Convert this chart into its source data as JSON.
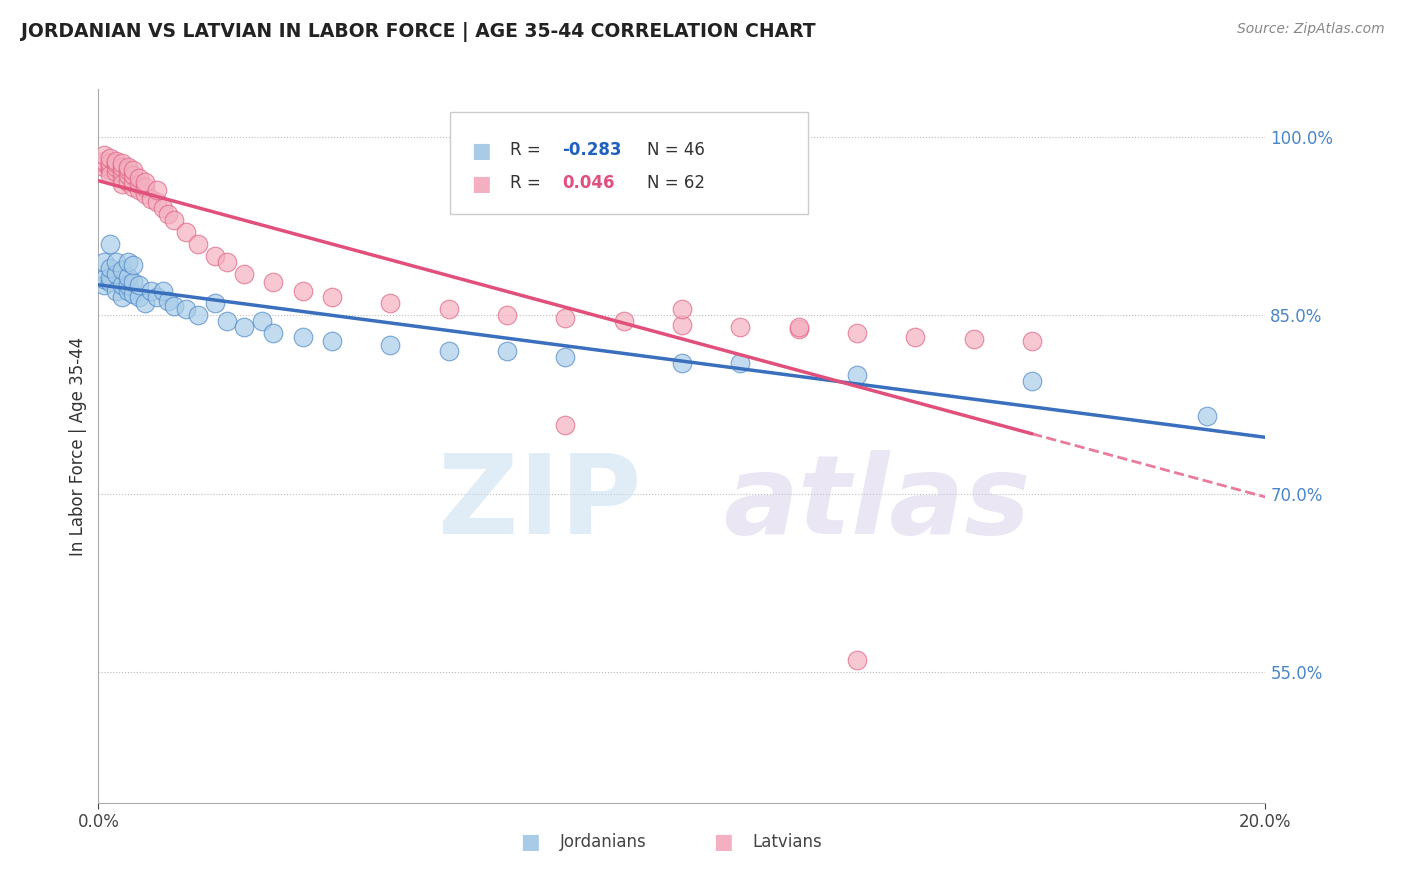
{
  "title": "JORDANIAN VS LATVIAN IN LABOR FORCE | AGE 35-44 CORRELATION CHART",
  "source": "Source: ZipAtlas.com",
  "ylabel": "In Labor Force | Age 35-44",
  "xlim": [
    0.0,
    0.2
  ],
  "ylim": [
    0.44,
    1.04
  ],
  "yticks": [
    0.55,
    0.7,
    0.85,
    1.0
  ],
  "ytick_labels": [
    "55.0%",
    "70.0%",
    "85.0%",
    "100.0%"
  ],
  "R_jordanian": -0.283,
  "N_jordanian": 46,
  "R_latvian": 0.046,
  "N_latvian": 62,
  "blue_fill": "#a8cce8",
  "blue_edge": "#4a86c8",
  "pink_fill": "#f4b0c0",
  "pink_edge": "#e06080",
  "blue_line": "#3a6fbe",
  "pink_line": "#e0507a",
  "jordanian_x": [
    0.001,
    0.001,
    0.001,
    0.002,
    0.002,
    0.002,
    0.002,
    0.003,
    0.003,
    0.003,
    0.004,
    0.004,
    0.004,
    0.005,
    0.005,
    0.005,
    0.005,
    0.006,
    0.006,
    0.006,
    0.007,
    0.007,
    0.008,
    0.009,
    0.01,
    0.011,
    0.012,
    0.013,
    0.015,
    0.017,
    0.02,
    0.022,
    0.025,
    0.028,
    0.03,
    0.035,
    0.04,
    0.05,
    0.06,
    0.07,
    0.08,
    0.1,
    0.11,
    0.13,
    0.16,
    0.19
  ],
  "jordanian_y": [
    0.875,
    0.88,
    0.895,
    0.878,
    0.882,
    0.89,
    0.91,
    0.87,
    0.885,
    0.895,
    0.865,
    0.875,
    0.888,
    0.87,
    0.875,
    0.882,
    0.895,
    0.868,
    0.878,
    0.892,
    0.865,
    0.875,
    0.86,
    0.87,
    0.865,
    0.87,
    0.862,
    0.858,
    0.855,
    0.85,
    0.86,
    0.845,
    0.84,
    0.845,
    0.835,
    0.832,
    0.828,
    0.825,
    0.82,
    0.82,
    0.815,
    0.81,
    0.81,
    0.8,
    0.795,
    0.765
  ],
  "latvian_x": [
    0.001,
    0.001,
    0.001,
    0.001,
    0.002,
    0.002,
    0.002,
    0.002,
    0.002,
    0.003,
    0.003,
    0.003,
    0.003,
    0.004,
    0.004,
    0.004,
    0.004,
    0.004,
    0.005,
    0.005,
    0.005,
    0.005,
    0.006,
    0.006,
    0.006,
    0.006,
    0.007,
    0.007,
    0.007,
    0.008,
    0.008,
    0.008,
    0.009,
    0.01,
    0.01,
    0.011,
    0.012,
    0.013,
    0.015,
    0.017,
    0.02,
    0.022,
    0.025,
    0.03,
    0.035,
    0.04,
    0.05,
    0.06,
    0.07,
    0.08,
    0.09,
    0.1,
    0.11,
    0.12,
    0.13,
    0.14,
    0.15,
    0.16,
    0.1,
    0.12,
    0.08,
    0.13
  ],
  "latvian_y": [
    0.975,
    0.978,
    0.98,
    0.985,
    0.972,
    0.975,
    0.978,
    0.982,
    0.968,
    0.97,
    0.975,
    0.978,
    0.98,
    0.965,
    0.97,
    0.975,
    0.978,
    0.96,
    0.962,
    0.968,
    0.972,
    0.975,
    0.958,
    0.962,
    0.968,
    0.972,
    0.955,
    0.96,
    0.965,
    0.952,
    0.958,
    0.962,
    0.948,
    0.945,
    0.955,
    0.94,
    0.935,
    0.93,
    0.92,
    0.91,
    0.9,
    0.895,
    0.885,
    0.878,
    0.87,
    0.865,
    0.86,
    0.855,
    0.85,
    0.848,
    0.845,
    0.842,
    0.84,
    0.838,
    0.835,
    0.832,
    0.83,
    0.828,
    0.855,
    0.84,
    0.758,
    0.56
  ]
}
